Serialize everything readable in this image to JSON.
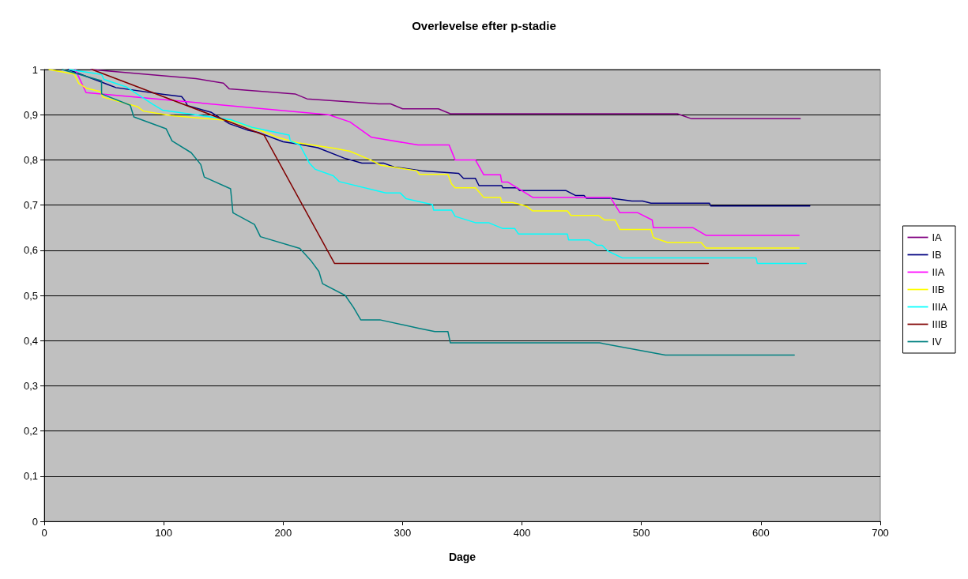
{
  "chart_data": {
    "type": "line",
    "title": "Overlevelse efter p-stadie",
    "xlabel": "Dage",
    "xlim": [
      0,
      700
    ],
    "xticks": [
      0,
      100,
      200,
      300,
      400,
      500,
      600,
      700
    ],
    "ylim": [
      0,
      1
    ],
    "yticks": [
      0,
      {
        "value": 0.1,
        "label": "0,1"
      },
      {
        "value": 0.2,
        "label": "0,2"
      },
      {
        "value": 0.3,
        "label": "0,3"
      },
      {
        "value": 0.4,
        "label": "0,4"
      },
      {
        "value": 0.5,
        "label": "0,5"
      },
      {
        "value": 0.6,
        "label": "0,6"
      },
      {
        "value": 0.7,
        "label": "0,7"
      },
      {
        "value": 0.8,
        "label": "0,8"
      },
      {
        "value": 0.9,
        "label": "0,9"
      },
      1
    ],
    "grid": "y",
    "legend": "right",
    "marker": "none",
    "line_style": "solid",
    "series": [
      {
        "name": "IA",
        "color": "#800080",
        "x": [
          39,
          127,
          150,
          155,
          210,
          220,
          280,
          290,
          300,
          330,
          340,
          530,
          542,
          633
        ],
        "values": [
          1,
          0.98,
          0.97,
          0.957,
          0.946,
          0.935,
          0.924,
          0.924,
          0.913,
          0.913,
          0.902,
          0.902,
          0.891,
          0.891
        ]
      },
      {
        "name": "IB",
        "color": "#000080",
        "x": [
          20,
          30,
          45,
          55,
          60,
          100,
          115,
          118,
          120,
          140,
          155,
          170,
          180,
          200,
          210,
          229,
          251,
          266,
          284,
          293,
          300,
          316,
          347,
          351,
          361,
          364,
          383,
          384,
          396,
          398,
          437,
          445,
          452,
          454,
          475,
          492,
          501,
          508,
          557,
          558,
          641
        ],
        "values": [
          1,
          0.99,
          0.975,
          0.965,
          0.96,
          0.945,
          0.94,
          0.93,
          0.92,
          0.905,
          0.88,
          0.866,
          0.86,
          0.84,
          0.836,
          0.827,
          0.804,
          0.793,
          0.793,
          0.784,
          0.782,
          0.776,
          0.77,
          0.759,
          0.759,
          0.743,
          0.743,
          0.738,
          0.738,
          0.732,
          0.732,
          0.721,
          0.721,
          0.715,
          0.715,
          0.709,
          0.709,
          0.704,
          0.704,
          0.698,
          0.698
        ]
      },
      {
        "name": "IIA",
        "color": "#ff00ff",
        "x": [
          26,
          35,
          238,
          256,
          274,
          313,
          339,
          344,
          361,
          368,
          382,
          383,
          388,
          409,
          474,
          482,
          497,
          509,
          510,
          543,
          554,
          632
        ],
        "values": [
          1,
          0.949,
          0.9,
          0.884,
          0.85,
          0.833,
          0.833,
          0.8,
          0.8,
          0.767,
          0.767,
          0.751,
          0.751,
          0.717,
          0.717,
          0.683,
          0.683,
          0.667,
          0.65,
          0.65,
          0.633,
          0.633
        ]
      },
      {
        "name": "IIB",
        "color": "#ffff00",
        "x": [
          4,
          25,
          29,
          35,
          47,
          49,
          78,
          83,
          106,
          156,
          182,
          195,
          212,
          244,
          256,
          273,
          282,
          312,
          314,
          338,
          341,
          344,
          361,
          368,
          382,
          383,
          392,
          404,
          409,
          438,
          441,
          464,
          469,
          478,
          482,
          508,
          510,
          522,
          550,
          554,
          632
        ],
        "values": [
          1,
          0.99,
          0.969,
          0.959,
          0.951,
          0.939,
          0.918,
          0.908,
          0.898,
          0.887,
          0.864,
          0.85,
          0.838,
          0.825,
          0.819,
          0.8,
          0.788,
          0.776,
          0.768,
          0.768,
          0.747,
          0.738,
          0.738,
          0.717,
          0.717,
          0.706,
          0.706,
          0.697,
          0.687,
          0.687,
          0.677,
          0.677,
          0.667,
          0.667,
          0.646,
          0.646,
          0.628,
          0.617,
          0.617,
          0.605,
          0.605
        ]
      },
      {
        "name": "IIIA",
        "color": "#00ffff",
        "x": [
          21,
          48,
          50,
          69,
          91,
          99,
          156,
          174,
          205,
          206,
          214,
          222,
          227,
          242,
          247,
          286,
          298,
          303,
          325,
          326,
          341,
          344,
          361,
          372,
          384,
          394,
          397,
          438,
          439,
          456,
          463,
          467,
          472,
          484,
          596,
          597,
          638
        ],
        "values": [
          1,
          0.989,
          0.978,
          0.961,
          0.923,
          0.91,
          0.889,
          0.872,
          0.855,
          0.842,
          0.833,
          0.793,
          0.779,
          0.765,
          0.752,
          0.727,
          0.727,
          0.714,
          0.701,
          0.689,
          0.689,
          0.675,
          0.661,
          0.661,
          0.648,
          0.648,
          0.636,
          0.636,
          0.623,
          0.623,
          0.611,
          0.611,
          0.598,
          0.583,
          0.583,
          0.571,
          0.571
        ]
      },
      {
        "name": "IIIB",
        "color": "#800000",
        "x": [
          40,
          184,
          243,
          556
        ],
        "values": [
          1,
          0.855,
          0.571,
          0.571
        ]
      },
      {
        "name": "IV",
        "color": "#008080",
        "x": [
          15,
          48,
          48,
          72,
          75,
          102,
          107,
          123,
          131,
          134,
          156,
          158,
          176,
          181,
          214,
          223,
          230,
          233,
          252,
          259,
          265,
          281,
          314,
          327,
          338,
          340,
          465,
          520,
          628
        ],
        "values": [
          1,
          0.975,
          0.946,
          0.921,
          0.895,
          0.869,
          0.842,
          0.816,
          0.79,
          0.762,
          0.736,
          0.683,
          0.657,
          0.63,
          0.604,
          0.578,
          0.553,
          0.526,
          0.5,
          0.473,
          0.446,
          0.446,
          0.427,
          0.42,
          0.42,
          0.395,
          0.395,
          0.368,
          0.368
        ]
      }
    ]
  }
}
